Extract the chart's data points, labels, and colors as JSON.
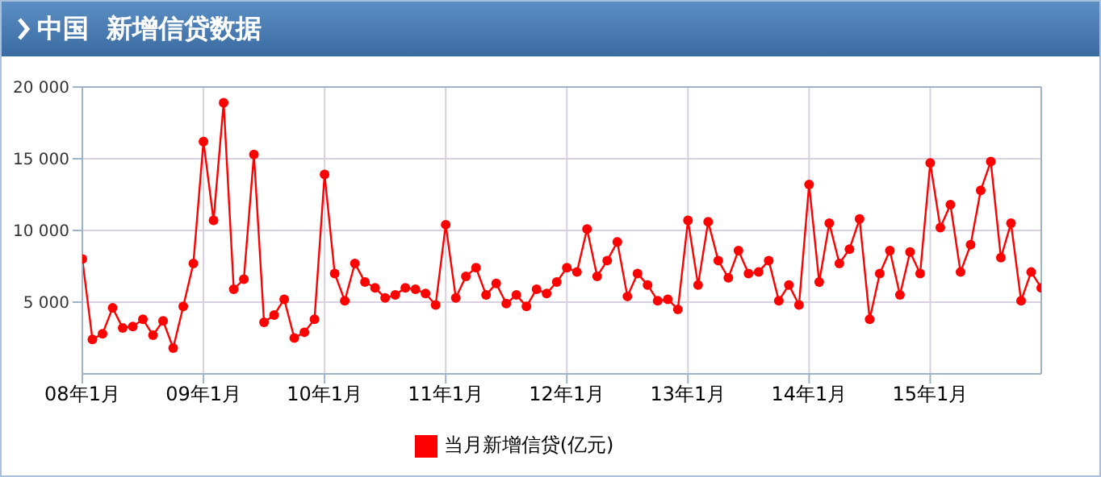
{
  "chart_data": {
    "type": "line",
    "title": "中国  新增信贷数据",
    "categories": [
      "08年1月",
      null,
      null,
      null,
      null,
      null,
      null,
      null,
      null,
      null,
      null,
      null,
      "09年1月",
      null,
      null,
      null,
      null,
      null,
      null,
      null,
      null,
      null,
      null,
      null,
      "10年1月",
      null,
      null,
      null,
      null,
      null,
      null,
      null,
      null,
      null,
      null,
      null,
      "11年1月",
      null,
      null,
      null,
      null,
      null,
      null,
      null,
      null,
      null,
      null,
      null,
      "12年1月",
      null,
      null,
      null,
      null,
      null,
      null,
      null,
      null,
      null,
      null,
      null,
      "13年1月",
      null,
      null,
      null,
      null,
      null,
      null,
      null,
      null,
      null,
      null,
      null,
      "14年1月",
      null,
      null,
      null,
      null,
      null,
      null,
      null,
      null,
      null,
      null,
      null,
      "15年1月",
      null,
      null,
      null,
      null,
      null,
      null,
      null,
      null,
      null,
      null,
      null
    ],
    "series": [
      {
        "name": "当月新增信贷(亿元)",
        "color": "#ff0000",
        "values": [
          8000,
          2400,
          2800,
          4600,
          3200,
          3300,
          3800,
          2700,
          3700,
          1800,
          4700,
          7700,
          16200,
          10700,
          18900,
          5900,
          6600,
          15300,
          3600,
          4100,
          5200,
          2500,
          2900,
          3800,
          13900,
          7000,
          5100,
          7700,
          6400,
          6000,
          5300,
          5500,
          6000,
          5900,
          5600,
          4800,
          10400,
          5300,
          6800,
          7400,
          5500,
          6300,
          4900,
          5500,
          4700,
          5900,
          5600,
          6400,
          7400,
          7100,
          10100,
          6800,
          7900,
          9200,
          5400,
          7000,
          6200,
          5100,
          5200,
          4500,
          10700,
          6200,
          10600,
          7900,
          6700,
          8600,
          7000,
          7100,
          7900,
          5100,
          6200,
          4800,
          13200,
          6400,
          10500,
          7700,
          8700,
          10800,
          3800,
          7000,
          8600,
          5500,
          8500,
          7000,
          14700,
          10200,
          11800,
          7100,
          9000,
          12800,
          14800,
          8100,
          10500,
          5100,
          7100,
          6000
        ]
      }
    ],
    "ylim": [
      0,
      20000
    ],
    "yticks": [
      {
        "value": 5000,
        "label": "5 000"
      },
      {
        "value": 10000,
        "label": "10 000"
      },
      {
        "value": 15000,
        "label": "15 000"
      },
      {
        "value": 20000,
        "label": "20 000"
      }
    ],
    "grid": true,
    "legend": "bottom",
    "marker": "circle",
    "line_style": "solid"
  }
}
